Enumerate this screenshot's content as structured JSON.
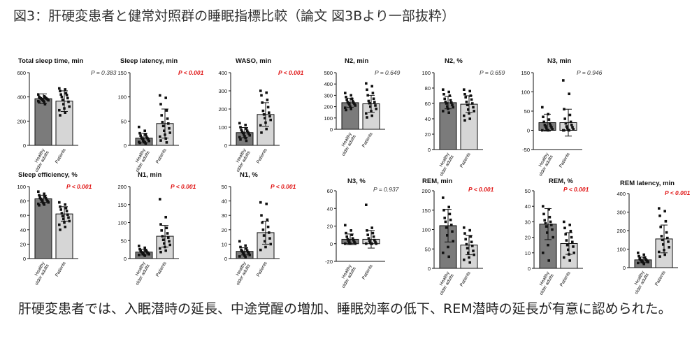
{
  "figure_title": "図3：肝硬変患者と健常対照群の睡眠指標比較（論文 図3Bより一部抜粋）",
  "summary": "肝硬変患者では、入眠潜時の延長、中途覚醒の増加、睡眠効率の低下、REM潜時の延長が有意に認められた。",
  "colors": {
    "healthy_bar": "#7b7b7b",
    "patients_bar": "#d6d6d6",
    "significant_p": "#e01414",
    "nonsignificant_p": "#333333"
  },
  "chart_data": [
    {
      "type": "bar",
      "title": "Total sleep time, min",
      "p": "P = 0.383",
      "significant": false,
      "categories": [
        "Healthy older adults",
        "Patients"
      ],
      "values": [
        385,
        365
      ],
      "sd": [
        40,
        85
      ],
      "ylim": [
        0,
        600
      ],
      "yticks": [
        0,
        200,
        400,
        600
      ],
      "points": [
        [
          420,
          405,
          400,
          398,
          392,
          390,
          388,
          385,
          382,
          380,
          375,
          372,
          368,
          365,
          360,
          355,
          340
        ],
        [
          470,
          462,
          448,
          430,
          420,
          415,
          400,
          390,
          375,
          360,
          340,
          320,
          305,
          290,
          270,
          248
        ]
      ]
    },
    {
      "type": "bar",
      "title": "Sleep latency, min",
      "p": "P < 0.001",
      "significant": true,
      "categories": [
        "Healthy older adults",
        "Patients"
      ],
      "values": [
        15,
        45
      ],
      "sd": [
        10,
        30
      ],
      "ylim": [
        0,
        150
      ],
      "yticks": [
        0,
        50,
        100,
        150
      ],
      "points": [
        [
          38,
          30,
          25,
          22,
          20,
          18,
          16,
          15,
          14,
          12,
          10,
          9,
          8,
          7,
          6,
          5,
          4
        ],
        [
          103,
          98,
          85,
          72,
          62,
          55,
          48,
          45,
          40,
          35,
          30,
          26,
          22,
          18,
          14,
          10,
          6
        ]
      ]
    },
    {
      "type": "bar",
      "title": "WASO, min",
      "p": "P < 0.001",
      "significant": true,
      "categories": [
        "Healthy older adults",
        "Patients"
      ],
      "values": [
        70,
        170
      ],
      "sd": [
        28,
        65
      ],
      "ylim": [
        0,
        400
      ],
      "yticks": [
        0,
        100,
        200,
        300,
        400
      ],
      "points": [
        [
          122,
          112,
          100,
          92,
          85,
          80,
          75,
          72,
          68,
          65,
          60,
          55,
          50,
          45,
          40,
          32,
          25
        ],
        [
          300,
          290,
          275,
          250,
          235,
          210,
          190,
          180,
          170,
          160,
          150,
          140,
          125,
          110,
          90,
          70
        ]
      ]
    },
    {
      "type": "bar",
      "title": "N2, min",
      "p": "P = 0.649",
      "significant": false,
      "categories": [
        "Healthy older adults",
        "Patients"
      ],
      "values": [
        235,
        225
      ],
      "sd": [
        40,
        75
      ],
      "ylim": [
        0,
        500
      ],
      "yticks": [
        0,
        100,
        200,
        300,
        400,
        500
      ],
      "points": [
        [
          320,
          300,
          285,
          270,
          260,
          250,
          240,
          235,
          230,
          225,
          220,
          210,
          200,
          190,
          180,
          170
        ],
        [
          405,
          380,
          350,
          320,
          300,
          270,
          250,
          240,
          230,
          210,
          200,
          180,
          160,
          140,
          120,
          105
        ]
      ]
    },
    {
      "type": "bar",
      "title": "N2, %",
      "p": "P = 0.659",
      "significant": false,
      "categories": [
        "Healthy older adults",
        "Patients"
      ],
      "values": [
        61,
        59
      ],
      "sd": [
        8,
        11
      ],
      "ylim": [
        0,
        100
      ],
      "yticks": [
        0,
        20,
        40,
        60,
        80,
        100
      ],
      "points": [
        [
          78,
          75,
          72,
          70,
          66,
          64,
          62,
          61,
          60,
          58,
          56,
          55,
          53,
          50,
          48
        ],
        [
          78,
          76,
          72,
          70,
          68,
          65,
          62,
          60,
          58,
          55,
          52,
          50,
          47,
          44,
          40,
          38
        ]
      ]
    },
    {
      "type": "bar",
      "title": "N3, min",
      "p": "P = 0.946",
      "significant": false,
      "categories": [
        "Healthy older adults",
        "Patients"
      ],
      "values": [
        20,
        20
      ],
      "sd": [
        22,
        35
      ],
      "ylim": [
        -50,
        150
      ],
      "yticks": [
        -50,
        0,
        50,
        100,
        150
      ],
      "points": [
        [
          60,
          42,
          35,
          28,
          22,
          18,
          14,
          12,
          10,
          8,
          5,
          3,
          1,
          0,
          0
        ],
        [
          130,
          95,
          55,
          40,
          30,
          22,
          18,
          14,
          10,
          8,
          5,
          3,
          1,
          0,
          0,
          0
        ]
      ]
    },
    {
      "type": "bar",
      "title": "Sleep efficiency, %",
      "p": "P < 0.001",
      "significant": true,
      "categories": [
        "Healthy older adults",
        "Patients"
      ],
      "values": [
        83,
        62
      ],
      "sd": [
        5,
        10
      ],
      "ylim": [
        0,
        100
      ],
      "yticks": [
        0,
        20,
        40,
        60,
        80,
        100
      ],
      "points": [
        [
          93,
          90,
          88,
          86,
          85,
          84,
          83,
          82,
          81,
          80,
          79,
          78,
          77,
          76,
          75,
          74
        ],
        [
          78,
          75,
          72,
          70,
          68,
          66,
          63,
          61,
          59,
          57,
          55,
          52,
          50,
          47,
          44,
          40
        ]
      ]
    },
    {
      "type": "bar",
      "title": "N1, min",
      "p": "P < 0.001",
      "significant": true,
      "categories": [
        "Healthy older adults",
        "Patients"
      ],
      "values": [
        18,
        62
      ],
      "sd": [
        8,
        30
      ],
      "ylim": [
        0,
        200
      ],
      "yticks": [
        0,
        50,
        100,
        150,
        200
      ],
      "points": [
        [
          35,
          30,
          26,
          23,
          21,
          20,
          18,
          17,
          16,
          15,
          14,
          12,
          11,
          10,
          8
        ],
        [
          165,
          115,
          95,
          85,
          78,
          70,
          62,
          58,
          52,
          48,
          42,
          38,
          32,
          28,
          22,
          18
        ]
      ]
    },
    {
      "type": "bar",
      "title": "N1, %",
      "p": "P < 0.001",
      "significant": true,
      "categories": [
        "Healthy older adults",
        "Patients"
      ],
      "values": [
        5,
        18
      ],
      "sd": [
        2.5,
        8
      ],
      "ylim": [
        0,
        50
      ],
      "yticks": [
        0,
        10,
        20,
        30,
        40,
        50
      ],
      "points": [
        [
          12,
          9,
          8,
          7,
          6,
          5.5,
          5,
          4.5,
          4,
          3.5,
          3,
          2.5,
          2,
          1.5,
          1
        ],
        [
          39,
          38,
          30,
          27,
          25,
          22,
          20,
          18,
          16,
          14,
          12,
          10,
          8,
          6
        ]
      ]
    },
    {
      "type": "bar",
      "title": "N3, %",
      "p": "P = 0.937",
      "significant": false,
      "categories": [
        "Healthy older adults",
        "Patients"
      ],
      "values": [
        5,
        5
      ],
      "sd": [
        6,
        10
      ],
      "ylim": [
        -20,
        60
      ],
      "yticks": [
        -20,
        0,
        20,
        40,
        60
      ],
      "points": [
        [
          21,
          15,
          12,
          10,
          8,
          6,
          5,
          4,
          3,
          2,
          1,
          0,
          0,
          0
        ],
        [
          44,
          18,
          15,
          12,
          10,
          8,
          6,
          4,
          3,
          2,
          1,
          0,
          0,
          0,
          0
        ]
      ]
    },
    {
      "type": "bar",
      "title": "REM, min",
      "p": "P < 0.001",
      "significant": true,
      "categories": [
        "Healthy older adults",
        "Patients"
      ],
      "values": [
        110,
        60
      ],
      "sd": [
        42,
        25
      ],
      "ylim": [
        0,
        200
      ],
      "yticks": [
        0,
        50,
        100,
        150,
        200
      ],
      "points": [
        [
          182,
          158,
          150,
          140,
          130,
          125,
          120,
          112,
          105,
          95,
          85,
          70,
          55,
          40,
          30
        ],
        [
          105,
          98,
          90,
          82,
          75,
          68,
          62,
          58,
          52,
          45,
          40,
          35,
          28,
          22,
          15
        ]
      ]
    },
    {
      "type": "bar",
      "title": "REM, %",
      "p": "P < 0.001",
      "significant": true,
      "categories": [
        "Healthy older adults",
        "Patients"
      ],
      "values": [
        28.5,
        16
      ],
      "sd": [
        10,
        7
      ],
      "ylim": [
        0,
        50
      ],
      "yticks": [
        0,
        10,
        20,
        30,
        40,
        50
      ],
      "points": [
        [
          40,
          38,
          35,
          33,
          31,
          30,
          29,
          28,
          27,
          25,
          23,
          20,
          15,
          10,
          5
        ],
        [
          30,
          28,
          26,
          24,
          22,
          20,
          18,
          17,
          15,
          14,
          12,
          10,
          9,
          7,
          5
        ]
      ]
    },
    {
      "type": "bar",
      "title": "REM latency, min",
      "p": "P < 0.001",
      "significant": true,
      "categories": [
        "Healthy older adults",
        "Patients"
      ],
      "values": [
        42,
        155
      ],
      "sd": [
        15,
        75
      ],
      "ylim": [
        0,
        400
      ],
      "yticks": [
        0,
        100,
        200,
        300,
        400
      ],
      "points": [
        [
          80,
          70,
          62,
          55,
          50,
          46,
          42,
          40,
          38,
          35,
          32,
          30,
          28,
          25,
          20
        ],
        [
          320,
          305,
          280,
          250,
          220,
          190,
          170,
          160,
          150,
          140,
          125,
          110,
          95,
          85,
          70,
          60
        ]
      ]
    }
  ]
}
